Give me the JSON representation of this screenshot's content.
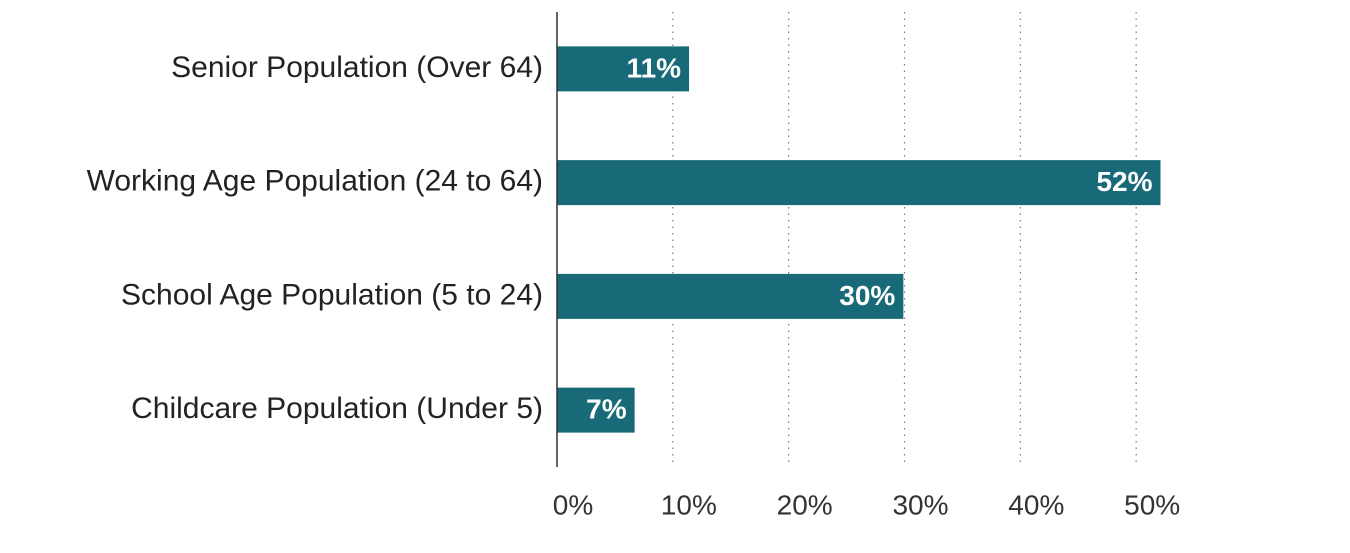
{
  "chart_data": {
    "type": "hbar",
    "categories": [
      "Senior Population (Over 64)",
      "Working Age Population (24 to 64)",
      "School Age Population (5 to 24)",
      "Childcare Population (Under 5)"
    ],
    "values": [
      11.4,
      52.1,
      29.9,
      6.7
    ],
    "value_labels": [
      "11%",
      "52%",
      "30%",
      "7%"
    ],
    "color": "#196a78",
    "xlim": [
      0,
      60
    ],
    "xticks": [
      {
        "value": 0,
        "label": "0%"
      },
      {
        "value": 10,
        "label": "10%"
      },
      {
        "value": 20,
        "label": "20%"
      },
      {
        "value": 30,
        "label": "30%"
      },
      {
        "value": 40,
        "label": "40%"
      },
      {
        "value": 50,
        "label": "50%"
      }
    ],
    "grid": true
  }
}
